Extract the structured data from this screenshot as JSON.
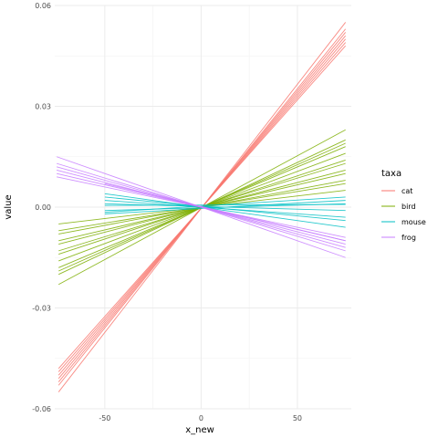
{
  "chart_data": {
    "type": "line",
    "xlabel": "x_new",
    "ylabel": "value",
    "legend_title": "taxa",
    "legend_position": "right",
    "grid": true,
    "xlim": [
      -76,
      78
    ],
    "ylim": [
      -0.06,
      0.06
    ],
    "x_ticks": [
      -50,
      0,
      50
    ],
    "x_tick_labels": [
      "-50",
      "0",
      "50"
    ],
    "y_ticks": [
      -0.06,
      -0.03,
      0.0,
      0.03,
      0.06
    ],
    "y_tick_labels": [
      "-0.06",
      "-0.03",
      "0.00",
      "0.03",
      "0.06"
    ],
    "series": [
      {
        "name": "cat",
        "color": "#F8766D",
        "lines": [
          {
            "x": [
              -74,
              75
            ],
            "y": [
              -0.055,
              0.055
            ]
          },
          {
            "x": [
              -74,
              75
            ],
            "y": [
              -0.053,
              0.053
            ]
          },
          {
            "x": [
              -74,
              75
            ],
            "y": [
              -0.052,
              0.052
            ]
          },
          {
            "x": [
              -74,
              75
            ],
            "y": [
              -0.051,
              0.051
            ]
          },
          {
            "x": [
              -74,
              75
            ],
            "y": [
              -0.05,
              0.05
            ]
          },
          {
            "x": [
              -74,
              75
            ],
            "y": [
              -0.049,
              0.049
            ]
          },
          {
            "x": [
              -74,
              75
            ],
            "y": [
              -0.048,
              0.048
            ]
          }
        ]
      },
      {
        "name": "bird",
        "color": "#7CAE00",
        "lines": [
          {
            "x": [
              -74,
              75
            ],
            "y": [
              -0.023,
              0.023
            ]
          },
          {
            "x": [
              -74,
              75
            ],
            "y": [
              -0.02,
              0.02
            ]
          },
          {
            "x": [
              -74,
              75
            ],
            "y": [
              -0.019,
              0.019
            ]
          },
          {
            "x": [
              -74,
              75
            ],
            "y": [
              -0.018,
              0.018
            ]
          },
          {
            "x": [
              -74,
              75
            ],
            "y": [
              -0.016,
              0.016
            ]
          },
          {
            "x": [
              -74,
              75
            ],
            "y": [
              -0.014,
              0.014
            ]
          },
          {
            "x": [
              -74,
              75
            ],
            "y": [
              -0.013,
              0.013
            ]
          },
          {
            "x": [
              -74,
              75
            ],
            "y": [
              -0.011,
              0.011
            ]
          },
          {
            "x": [
              -74,
              75
            ],
            "y": [
              -0.01,
              0.01
            ]
          },
          {
            "x": [
              -74,
              75
            ],
            "y": [
              -0.008,
              0.008
            ]
          },
          {
            "x": [
              -74,
              75
            ],
            "y": [
              -0.007,
              0.007
            ]
          },
          {
            "x": [
              -74,
              75
            ],
            "y": [
              -0.005,
              0.005
            ]
          }
        ]
      },
      {
        "name": "mouse",
        "color": "#00BFC4",
        "lines": [
          {
            "x": [
              -50,
              75
            ],
            "y": [
              0.004,
              -0.006
            ]
          },
          {
            "x": [
              -50,
              75
            ],
            "y": [
              0.003,
              -0.004
            ]
          },
          {
            "x": [
              -50,
              75
            ],
            "y": [
              0.002,
              -0.003
            ]
          },
          {
            "x": [
              -50,
              75
            ],
            "y": [
              0.001,
              -0.001
            ]
          },
          {
            "x": [
              -50,
              75
            ],
            "y": [
              -0.001,
              0.001
            ]
          },
          {
            "x": [
              -50,
              75
            ],
            "y": [
              -0.002,
              0.002
            ]
          },
          {
            "x": [
              -50,
              75
            ],
            "y": [
              0.0005,
              0.0008
            ]
          },
          {
            "x": [
              -50,
              75
            ],
            "y": [
              -0.0015,
              0.003
            ]
          }
        ]
      },
      {
        "name": "frog",
        "color": "#C77CFF",
        "lines": [
          {
            "x": [
              -75,
              75
            ],
            "y": [
              0.015,
              -0.015
            ]
          },
          {
            "x": [
              -75,
              75
            ],
            "y": [
              0.013,
              -0.013
            ]
          },
          {
            "x": [
              -75,
              75
            ],
            "y": [
              0.012,
              -0.012
            ]
          },
          {
            "x": [
              -75,
              75
            ],
            "y": [
              0.011,
              -0.011
            ]
          },
          {
            "x": [
              -75,
              75
            ],
            "y": [
              0.01,
              -0.01
            ]
          },
          {
            "x": [
              -75,
              75
            ],
            "y": [
              0.009,
              -0.009
            ]
          },
          {
            "x": [
              -50,
              75
            ],
            "y": [
              0.007,
              -0.01
            ]
          }
        ]
      }
    ]
  }
}
